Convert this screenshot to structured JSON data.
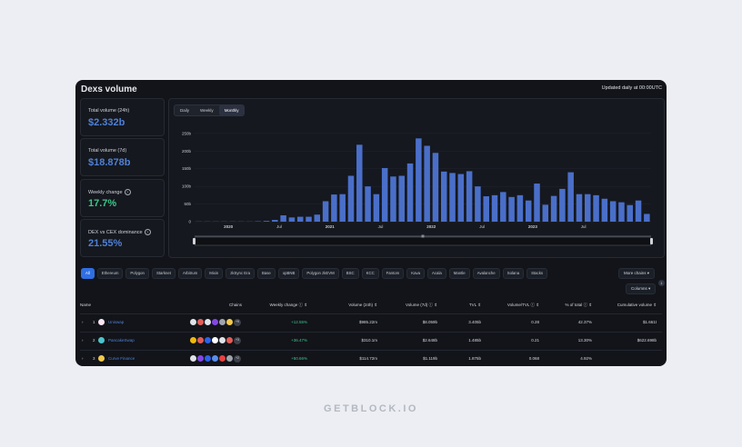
{
  "header": {
    "title": "Dexs volume",
    "updated": "Updated daily at 00:00UTC"
  },
  "stats": [
    {
      "label": "Total volume (24h)",
      "value": "$2.332b",
      "color": "blue",
      "help": false
    },
    {
      "label": "Total volume (7d)",
      "value": "$18.878b",
      "color": "blue",
      "help": false
    },
    {
      "label": "Weekly change",
      "value": "17.7%",
      "color": "green",
      "help": true
    },
    {
      "label": "DEX vs CEX dominance",
      "value": "21.55%",
      "color": "blue",
      "help": true
    }
  ],
  "tabs": [
    "Daily",
    "Weekly",
    "Monthly"
  ],
  "active_tab": "Monthly",
  "chart_data": {
    "type": "bar",
    "y_ticks": [
      "0",
      "50b",
      "100b",
      "150b",
      "200b",
      "250b"
    ],
    "ylim": [
      0,
      260
    ],
    "x_ticks": [
      "2020",
      "Jul",
      "2021",
      "Jul",
      "2022",
      "Jul",
      "2023",
      "Jul"
    ],
    "color": "#4a6fc9",
    "values": [
      0.5,
      0.5,
      0.5,
      0.5,
      0.5,
      0.5,
      0.5,
      1,
      2,
      5,
      18,
      12,
      14,
      14,
      20,
      58,
      77,
      78,
      130,
      218,
      100,
      78,
      152,
      128,
      130,
      165,
      236,
      215,
      195,
      142,
      138,
      135,
      143,
      100,
      72,
      75,
      84,
      70,
      75,
      60,
      108,
      48,
      73,
      93,
      140,
      78,
      78,
      75,
      65,
      58,
      55,
      47,
      60,
      22
    ]
  },
  "chains": [
    "All",
    "Ethereum",
    "Polygon",
    "Starknet",
    "Arbitrum",
    "Mixin",
    "zkSync Era",
    "Base",
    "opBNB",
    "Polygon zkEVM",
    "BSC",
    "KCC",
    "Fantom",
    "Kava",
    "Acala",
    "Mantle",
    "Avalanche",
    "Solana",
    "Stacks"
  ],
  "buttons": {
    "more_chains": "More chains",
    "columns": "Columns",
    "columns_badge": "1"
  },
  "table": {
    "columns": [
      "Name",
      "Chains",
      "Weekly change",
      "Volume (24h)",
      "Volume (7d)",
      "TVL",
      "Volume/TVL",
      "% of total",
      "Cumulative volume"
    ],
    "rows": [
      {
        "rank": "1",
        "name": "Uniswap",
        "icon": "#fce4f2",
        "chains": [
          "#e0e3ea",
          "#e25c57",
          "#e0e3ea",
          "#8247e5",
          "#a0a4ad",
          "#f2c94c"
        ],
        "more": "+9",
        "change": "+12.55%",
        "v24": "$985.22m",
        "v7": "$8.059b",
        "tvl": "3.405b",
        "vtvl": "0.28",
        "pct": "42.37%",
        "cum": "$1.661t"
      },
      {
        "rank": "2",
        "name": "PancakeSwap",
        "icon": "#4bc4cc",
        "chains": [
          "#f0b90b",
          "#e25c57",
          "#2e61e8",
          "#ffffff",
          "#e0e3ea",
          "#e25c57"
        ],
        "more": "+3",
        "change": "+36.47%",
        "v24": "$310.1m",
        "v7": "$2.648b",
        "tvl": "1.485b",
        "vtvl": "0.21",
        "pct": "13.30%",
        "cum": "$622.698b"
      },
      {
        "rank": "3",
        "name": "Curve Finance",
        "icon": "#f2c94c",
        "chains": [
          "#e0e3ea",
          "#8247e5",
          "#2e61e8",
          "#5a8dee",
          "#e84142",
          "#a0a4ad"
        ],
        "more": "+2",
        "change": "+50.66%",
        "v24": "$114.72m",
        "v7": "$1.119b",
        "tvl": "1.875b",
        "vtvl": "0.068",
        "pct": "4.92%",
        "cum": ""
      }
    ]
  },
  "footer": "GETBLOCK.IO"
}
